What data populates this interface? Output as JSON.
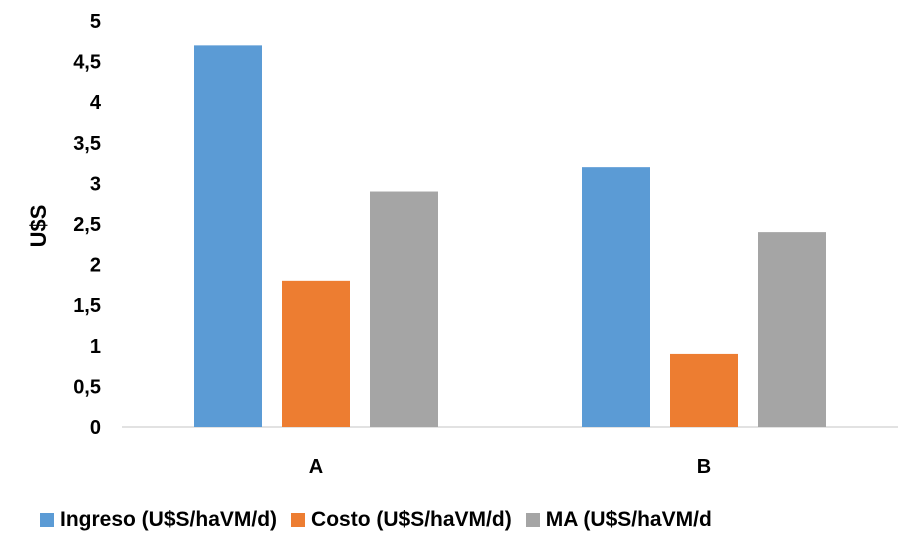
{
  "chart_data": {
    "type": "bar",
    "categories": [
      "A",
      "B"
    ],
    "series": [
      {
        "name": "Ingreso (U$S/haVM/d)",
        "values": [
          4.7,
          3.2
        ],
        "color": "#5B9BD5"
      },
      {
        "name": "Costo (U$S/haVM/d)",
        "values": [
          1.8,
          0.9
        ],
        "color": "#ED7D31"
      },
      {
        "name": "MA (U$S/haVM/d",
        "values": [
          2.9,
          2.4
        ],
        "color": "#A5A5A5"
      }
    ],
    "ylabel": "U$S",
    "ylim": [
      0,
      5
    ],
    "yticks": [
      "0",
      "0,5",
      "1",
      "1,5",
      "2",
      "2,5",
      "3",
      "3,5",
      "4",
      "4,5",
      "5"
    ],
    "grid": false,
    "legend_position": "bottom"
  }
}
